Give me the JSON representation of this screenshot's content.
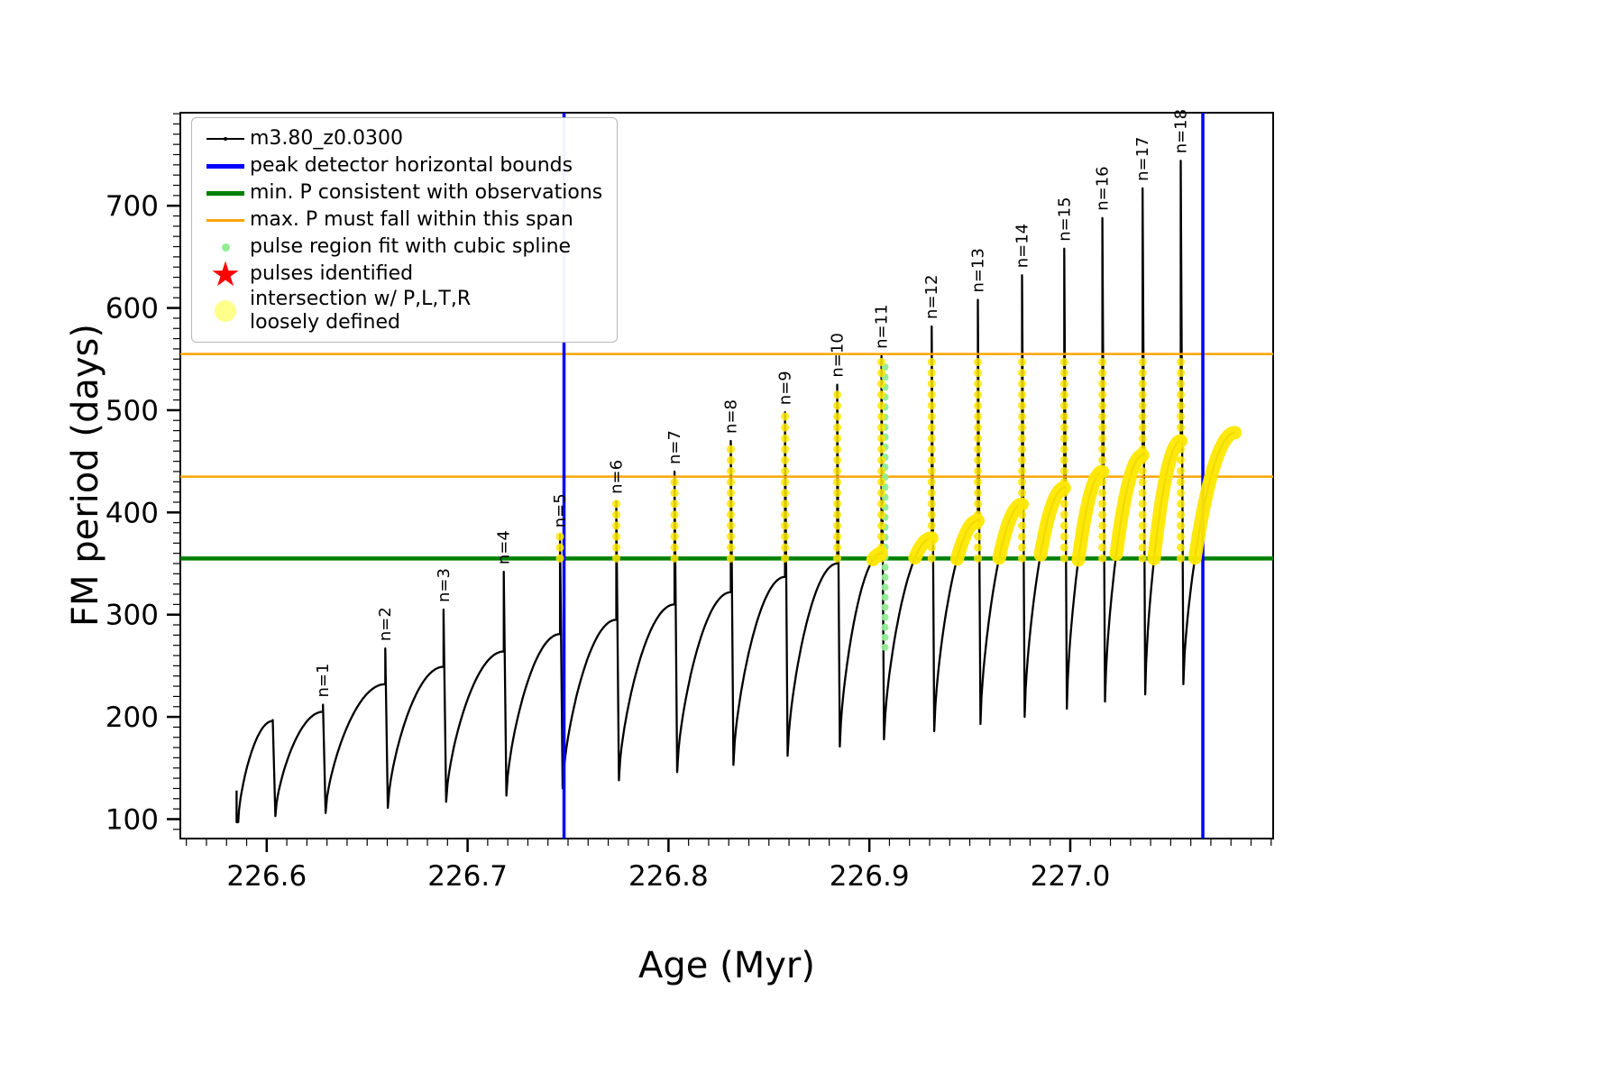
{
  "figure": {
    "xlabel": "Age (Myr)",
    "ylabel": "FM period (days)"
  },
  "legend": {
    "items": [
      {
        "label": "m3.80_z0.0300",
        "marker": "black-line-with-dot"
      },
      {
        "label": "peak detector horizontal bounds",
        "marker": "blue-thick-line"
      },
      {
        "label": "min. P consistent with observations",
        "marker": "green-thick-line"
      },
      {
        "label": "max. P must fall within this span",
        "marker": "orange-line"
      },
      {
        "label": "pulse region fit with cubic spline",
        "marker": "lightgreen-dot"
      },
      {
        "label": "pulses identified",
        "marker": "red-star"
      },
      {
        "label": "intersection w/ P,L,T,R\nloosely defined",
        "marker": "pale-yellow-dot"
      }
    ]
  },
  "chart_data": {
    "type": "line",
    "title": "",
    "xlabel": "Age (Myr)",
    "ylabel": "FM period (days)",
    "series_label": "m3.80_z0.0300",
    "x_range": [
      226.557,
      227.101
    ],
    "y_range": [
      81,
      791
    ],
    "x_major_ticks": [
      226.6,
      226.7,
      226.8,
      226.9,
      227.0
    ],
    "x_tick_labels": [
      "226.6",
      "226.7",
      "226.8",
      "226.9",
      "227.0"
    ],
    "x_minor_step": 0.01,
    "y_major_ticks": [
      100,
      200,
      300,
      400,
      500,
      600,
      700
    ],
    "y_minor_step": 10,
    "grid": false,
    "legend_position": "upper left",
    "vlines": {
      "label": "peak detector horizontal bounds",
      "color": "#0000ff",
      "x": [
        226.748,
        227.066
      ]
    },
    "hlines": {
      "green": {
        "label": "min. P consistent with observations",
        "color": "#008000",
        "y": 355
      },
      "orange": {
        "label": "max. P must fall within this span",
        "color": "#ffa500",
        "y": [
          435,
          555
        ]
      }
    },
    "curve_start": {
      "age": 226.585,
      "y_top": 128,
      "y_trough": 97
    },
    "curve_end": {
      "age": 227.082,
      "y": 478
    },
    "pulses": [
      {
        "n": 0,
        "label": "",
        "age": 226.603,
        "shoulder": 196,
        "peak": 197,
        "trough_after": 103
      },
      {
        "n": 1,
        "label": "n=1",
        "age": 226.628,
        "shoulder": 205,
        "peak": 212,
        "trough_after": 106
      },
      {
        "n": 2,
        "label": "n=2",
        "age": 226.659,
        "shoulder": 232,
        "peak": 267,
        "trough_after": 111
      },
      {
        "n": 3,
        "label": "n=3",
        "age": 226.688,
        "shoulder": 249,
        "peak": 305,
        "trough_after": 117
      },
      {
        "n": 4,
        "label": "n=4",
        "age": 226.718,
        "shoulder": 264,
        "peak": 342,
        "trough_after": 123
      },
      {
        "n": 5,
        "label": "n=5",
        "age": 226.746,
        "shoulder": 281,
        "peak": 378,
        "trough_after": 130
      },
      {
        "n": 6,
        "label": "n=6",
        "age": 226.774,
        "shoulder": 295,
        "peak": 411,
        "trough_after": 138
      },
      {
        "n": 7,
        "label": "n=7",
        "age": 226.803,
        "shoulder": 310,
        "peak": 440,
        "trough_after": 146
      },
      {
        "n": 8,
        "label": "n=8",
        "age": 226.831,
        "shoulder": 322,
        "peak": 470,
        "trough_after": 153
      },
      {
        "n": 9,
        "label": "n=9",
        "age": 226.858,
        "shoulder": 337,
        "peak": 498,
        "trough_after": 162
      },
      {
        "n": 10,
        "label": "n=10",
        "age": 226.884,
        "shoulder": 350,
        "peak": 525,
        "trough_after": 171
      },
      {
        "n": 11,
        "label": "n=11",
        "age": 226.906,
        "shoulder": 360,
        "peak": 553,
        "trough_after": 178
      },
      {
        "n": 12,
        "label": "n=12",
        "age": 226.931,
        "shoulder": 375,
        "peak": 582,
        "trough_after": 186
      },
      {
        "n": 13,
        "label": "n=13",
        "age": 226.954,
        "shoulder": 392,
        "peak": 608,
        "trough_after": 193
      },
      {
        "n": 14,
        "label": "n=14",
        "age": 226.976,
        "shoulder": 408,
        "peak": 632,
        "trough_after": 200
      },
      {
        "n": 15,
        "label": "n=15",
        "age": 226.997,
        "shoulder": 424,
        "peak": 658,
        "trough_after": 208
      },
      {
        "n": 16,
        "label": "n=16",
        "age": 227.016,
        "shoulder": 440,
        "peak": 688,
        "trough_after": 215
      },
      {
        "n": 17,
        "label": "n=17",
        "age": 227.036,
        "shoulder": 456,
        "peak": 717,
        "trough_after": 222
      },
      {
        "n": 18,
        "label": "n=18",
        "age": 227.055,
        "shoulder": 470,
        "peak": 744,
        "trough_after": 232
      }
    ],
    "overlays": {
      "yellow_intersection": {
        "color": "#ffe800",
        "spike_min_n": 5,
        "spike_y_min": 355,
        "spike_y_max": 555,
        "hump_threshold": 353
      },
      "lightgreen_spline": {
        "color": "#90ee90",
        "spike_n": 11,
        "y_from": 268,
        "y_to": 548
      }
    }
  }
}
